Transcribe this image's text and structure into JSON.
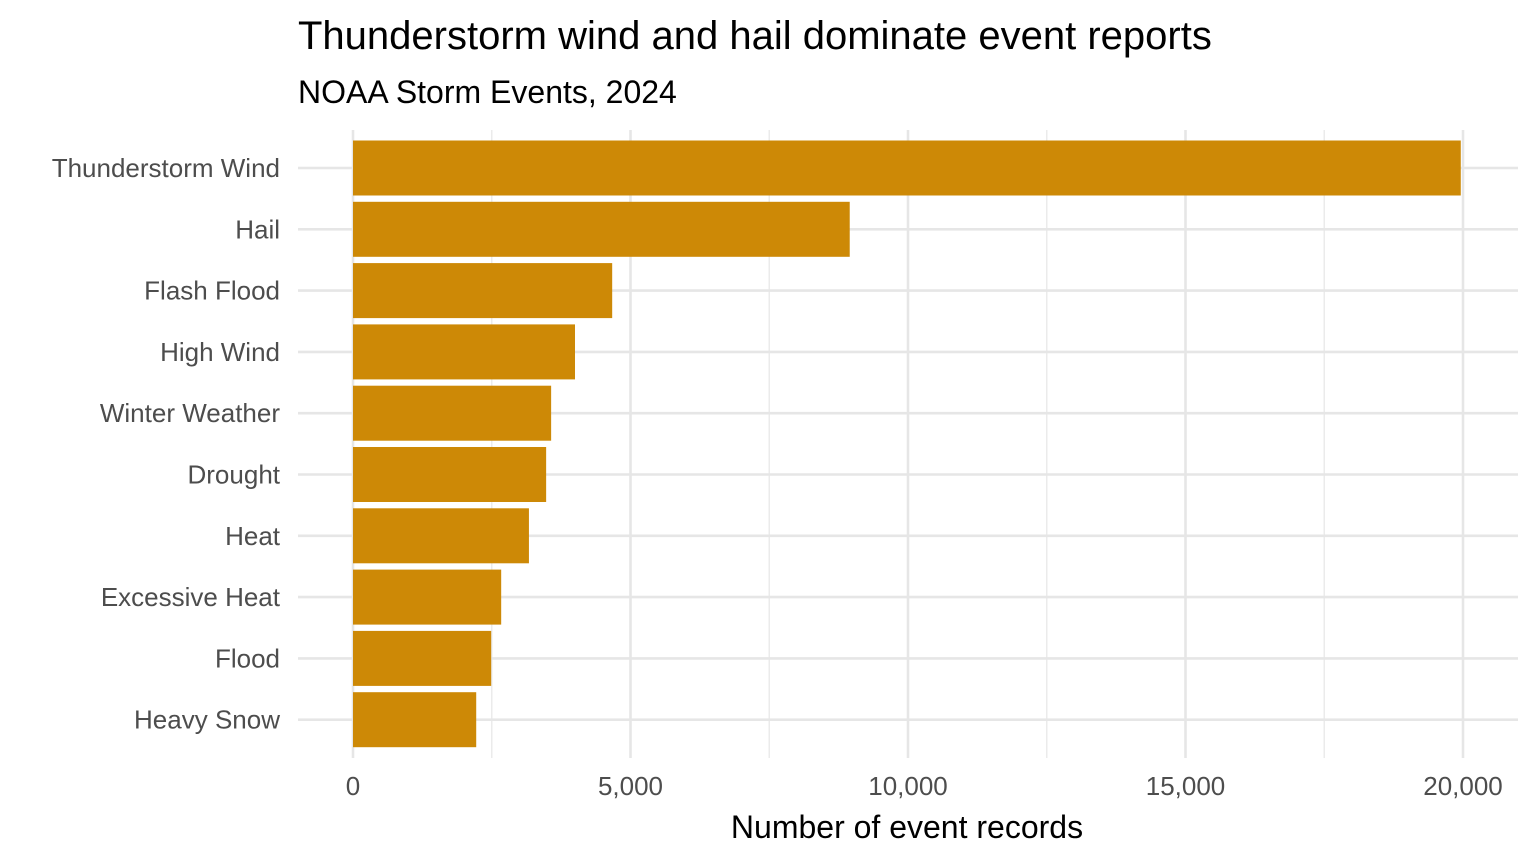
{
  "chart_data": {
    "type": "bar",
    "orientation": "horizontal",
    "title": "Thunderstorm wind and hail dominate event reports",
    "subtitle": "NOAA Storm Events, 2024",
    "xlabel": "Number of event records",
    "ylabel": "",
    "categories": [
      "Thunderstorm Wind",
      "Hail",
      "Flash Flood",
      "High Wind",
      "Winter Weather",
      "Drought",
      "Heat",
      "Excessive Heat",
      "Flood",
      "Heavy Snow"
    ],
    "values": [
      19960,
      8950,
      4670,
      4000,
      3570,
      3480,
      3170,
      2670,
      2490,
      2220
    ],
    "xlim": [
      0,
      20000
    ],
    "x_ticks": [
      0,
      5000,
      10000,
      15000,
      20000
    ],
    "x_tick_labels": [
      "0",
      "5,000",
      "10,000",
      "15,000",
      "20,000"
    ],
    "bar_color": "#CD8906",
    "grid": true,
    "legend": "none"
  }
}
